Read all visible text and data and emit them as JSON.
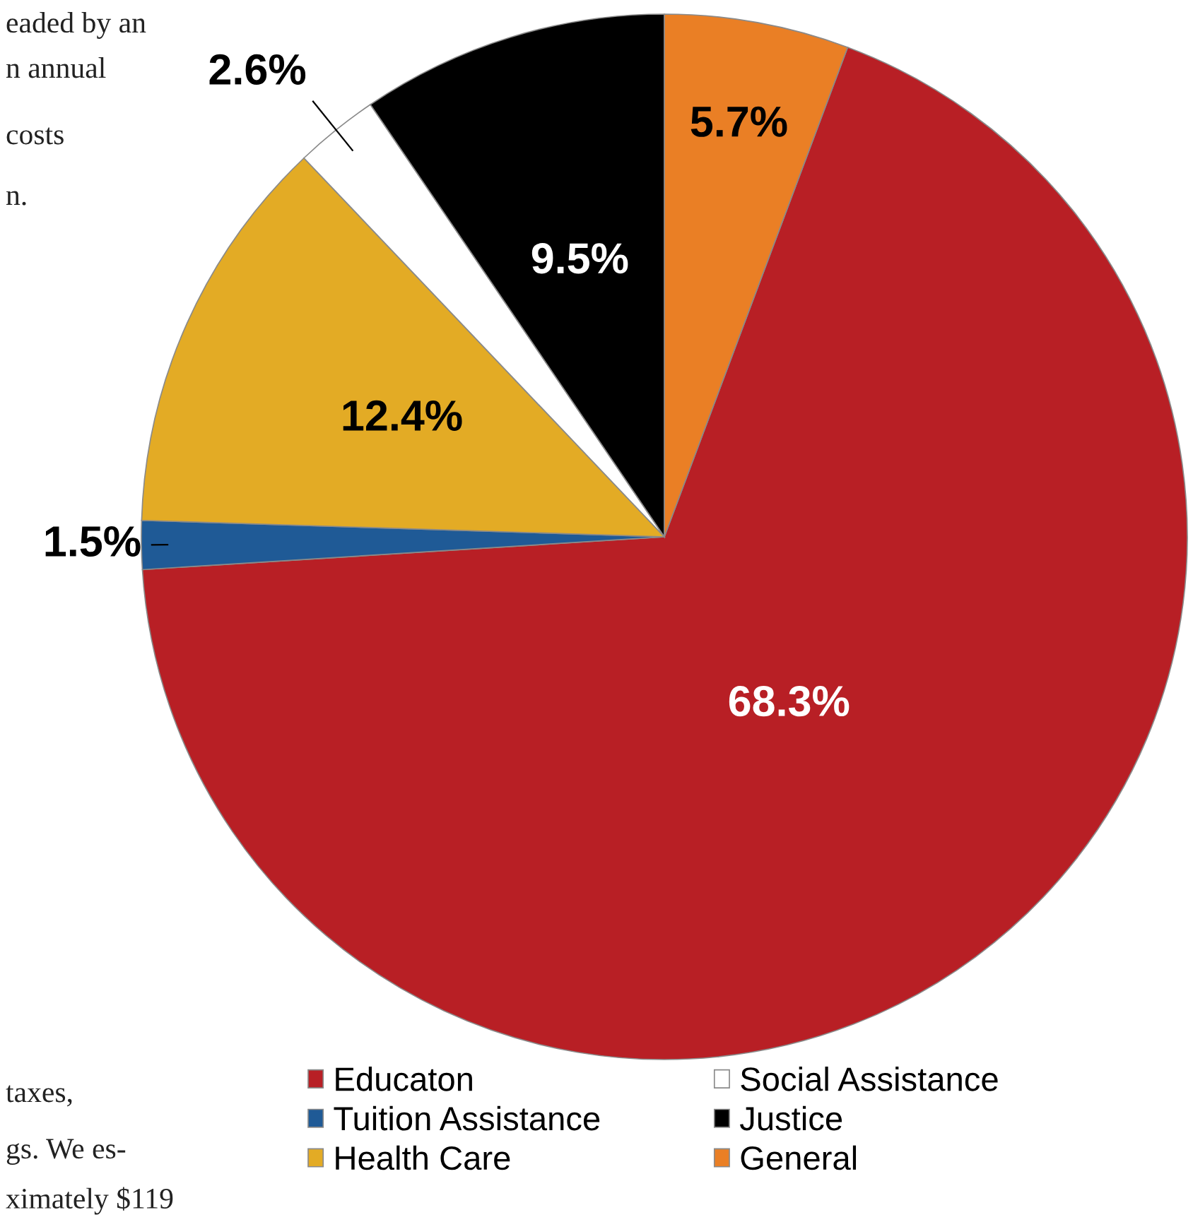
{
  "chart_data": {
    "type": "pie",
    "categories": [
      "Educaton",
      "Tuition Assistance",
      "Health Care",
      "Social Assistance",
      "Justice",
      "General"
    ],
    "values": [
      68.3,
      1.5,
      12.4,
      2.6,
      9.5,
      5.7
    ],
    "colors": [
      "#b81f25",
      "#1f5a96",
      "#e3ab25",
      "#ffffff",
      "#000000",
      "#ea7f25"
    ],
    "value_labels": [
      "68.3%",
      "1.5%",
      "12.4%",
      "2.6%",
      "9.5%",
      "5.7%"
    ],
    "legend": "bottom",
    "annotations": [
      "eaded by an",
      "n annual",
      "costs",
      "n.",
      "taxes,",
      "gs. We es-",
      "ximately $119"
    ]
  }
}
